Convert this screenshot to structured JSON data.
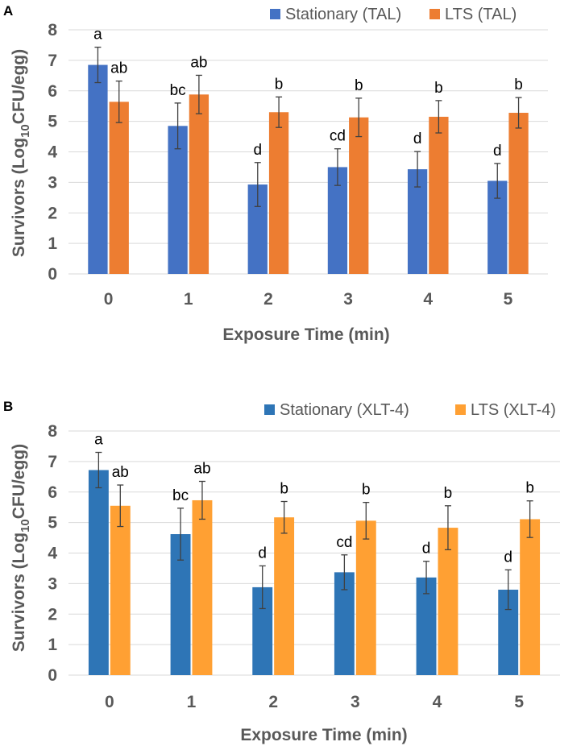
{
  "chart_data": [
    {
      "type": "bar",
      "panel": "A",
      "categories": [
        "0",
        "1",
        "2",
        "3",
        "4",
        "5"
      ],
      "xlabel": "Exposure Time (min)",
      "ylabel": {
        "prefix": "Survivors (Log",
        "sub": "10",
        "suffix": "CFU/egg)"
      },
      "ylim": [
        0,
        8
      ],
      "yticks": [
        "0",
        "1",
        "2",
        "3",
        "4",
        "5",
        "6",
        "7",
        "8"
      ],
      "grid": true,
      "legend_position": "top-right",
      "series": [
        {
          "name": "Stationary (TAL)",
          "color": "#4472c4",
          "values": [
            6.85,
            4.85,
            2.93,
            3.5,
            3.43,
            3.05
          ],
          "errors": [
            0.58,
            0.75,
            0.72,
            0.6,
            0.58,
            0.57
          ],
          "labels": [
            "a",
            "bc",
            "d",
            "cd",
            "d",
            "d"
          ]
        },
        {
          "name": "LTS (TAL)",
          "color": "#ed7d31",
          "values": [
            5.64,
            5.88,
            5.3,
            5.13,
            5.15,
            5.28
          ],
          "errors": [
            0.68,
            0.63,
            0.5,
            0.63,
            0.53,
            0.5
          ],
          "labels": [
            "ab",
            "ab",
            "b",
            "b",
            "b",
            "b"
          ]
        }
      ]
    },
    {
      "type": "bar",
      "panel": "B",
      "categories": [
        "0",
        "1",
        "2",
        "3",
        "4",
        "5"
      ],
      "xlabel": "Exposure Time (min)",
      "ylabel": {
        "prefix": "Survivors (Log",
        "sub": "10",
        "suffix": "CFU/egg)"
      },
      "ylim": [
        0,
        8
      ],
      "yticks": [
        "0",
        "1",
        "2",
        "3",
        "4",
        "5",
        "6",
        "7",
        "8"
      ],
      "grid": true,
      "legend_position": "top-right",
      "series": [
        {
          "name": "Stationary (XLT-4)",
          "color": "#2e75b6",
          "values": [
            6.72,
            4.62,
            2.88,
            3.37,
            3.2,
            2.8
          ],
          "errors": [
            0.58,
            0.85,
            0.7,
            0.57,
            0.53,
            0.65
          ],
          "labels": [
            "a",
            "bc",
            "d",
            "cd",
            "d",
            "d"
          ]
        },
        {
          "name": "LTS (XLT-4)",
          "color": "#ffa033",
          "values": [
            5.55,
            5.73,
            5.17,
            5.06,
            4.83,
            5.11
          ],
          "errors": [
            0.68,
            0.62,
            0.52,
            0.6,
            0.72,
            0.6
          ],
          "labels": [
            "ab",
            "ab",
            "b",
            "b",
            "b",
            "b"
          ]
        }
      ]
    }
  ]
}
